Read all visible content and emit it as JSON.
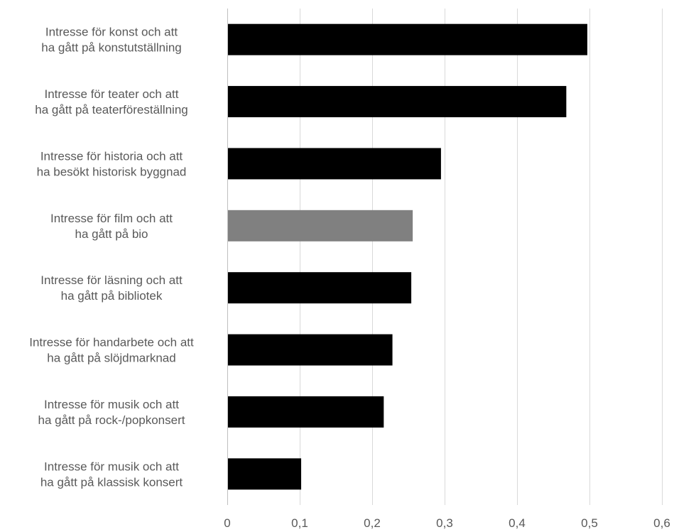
{
  "chart_data": {
    "type": "bar",
    "orientation": "horizontal",
    "categories": [
      [
        "Intresse för konst och att",
        "ha gått på konstutställning"
      ],
      [
        "Intresse för teater och att",
        "ha gått på teaterföreställning"
      ],
      [
        "Intresse för historia och att",
        "ha besökt historisk byggnad"
      ],
      [
        "Intresse för film och att",
        "ha gått på bio"
      ],
      [
        "Intresse för läsning och att",
        "ha gått på bibliotek"
      ],
      [
        "Intresse för handarbete och att",
        "ha gått på slöjdmarknad"
      ],
      [
        "Intresse för musik och att",
        "ha gått på rock-/popkonsert"
      ],
      [
        "Intresse för musik och att",
        "ha gått på klassisk konsert"
      ]
    ],
    "values": [
      0.497,
      0.468,
      0.295,
      0.256,
      0.254,
      0.228,
      0.216,
      0.102
    ],
    "bar_colors": [
      "#000000",
      "#000000",
      "#000000",
      "#808080",
      "#000000",
      "#000000",
      "#000000",
      "#000000"
    ],
    "xlim": [
      0,
      0.6
    ],
    "xticks": [
      "0",
      "0,1",
      "0,2",
      "0,3",
      "0,4",
      "0,5",
      "0,6"
    ],
    "grid": true,
    "title": "",
    "xlabel": "",
    "ylabel": ""
  }
}
